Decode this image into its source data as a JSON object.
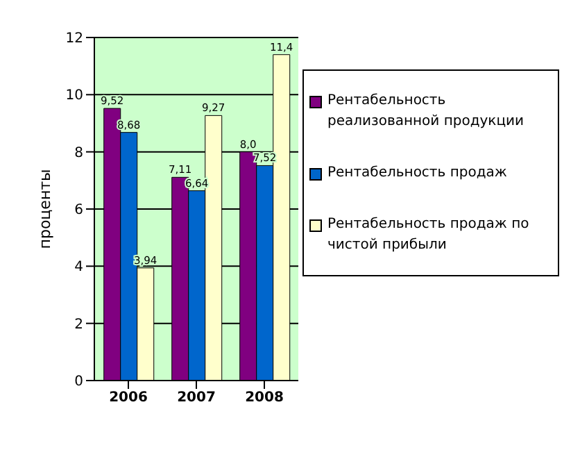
{
  "chart_data": {
    "type": "bar",
    "ylabel": "проценты",
    "categories": [
      "2006",
      "2007",
      "2008"
    ],
    "series": [
      {
        "name": "Рентабельность реализованной продукции",
        "color": "#800080",
        "values": [
          9.52,
          7.11,
          8.0
        ],
        "value_labels": [
          "9,52",
          "7,11",
          "8,0"
        ]
      },
      {
        "name": "Рентабельность продаж",
        "color": "#0066cc",
        "values": [
          8.68,
          6.64,
          7.52
        ],
        "value_labels": [
          "8,68",
          "6,64",
          "7,52"
        ]
      },
      {
        "name": "Рентабельность продаж по чистой прибыли",
        "color": "#ffffcc",
        "values": [
          3.94,
          9.27,
          11.4
        ],
        "value_labels": [
          "3,94",
          "9,27",
          "11,4"
        ]
      }
    ],
    "ylim": [
      0,
      12
    ],
    "yticks": [
      0,
      2,
      4,
      6,
      8,
      10,
      12
    ],
    "grid": "y",
    "legend": "right"
  }
}
